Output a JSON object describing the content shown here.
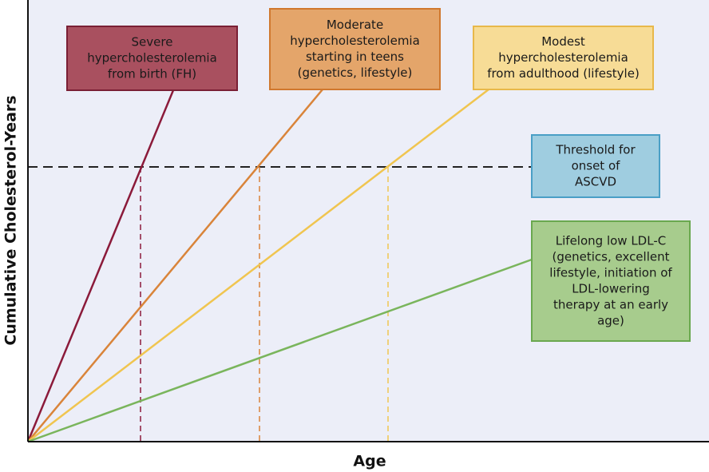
{
  "axes": {
    "x_label": "Age",
    "y_label": "Cumulative Cholesterol-Years"
  },
  "boxes": [
    {
      "lines": [
        "Severe",
        "hypercholesterolemia",
        "from birth (FH)"
      ]
    },
    {
      "lines": [
        "Moderate",
        "hypercholesterolemia",
        "starting in teens",
        "(genetics, lifestyle)"
      ]
    },
    {
      "lines": [
        "Modest",
        "hypercholesterolemia",
        "from adulthood (lifestyle)"
      ]
    },
    {
      "lines": [
        "Threshold for",
        "onset of",
        "ASCVD"
      ]
    },
    {
      "lines": [
        "Lifelong low LDL-C",
        "(genetics, excellent",
        "lifestyle, initiation of",
        "LDL-lowering",
        "therapy at an early",
        "age)"
      ]
    }
  ]
}
